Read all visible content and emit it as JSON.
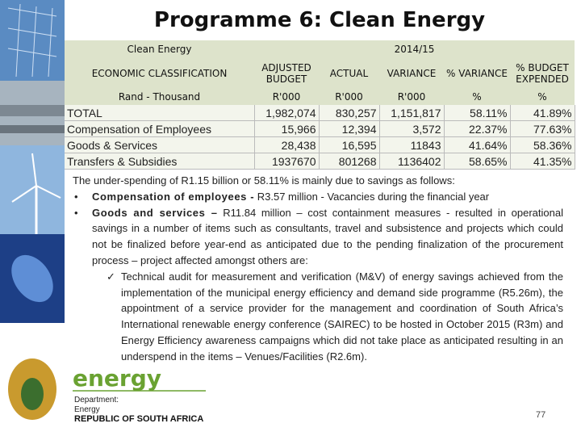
{
  "title": "Programme 6: Clean Energy",
  "table": {
    "header_row1": [
      "Clean Energy",
      "2014/15"
    ],
    "header_row2": [
      "ECONOMIC CLASSIFICATION",
      "ADJUSTED BUDGET",
      "ACTUAL",
      "VARIANCE",
      "% VARIANCE",
      "% BUDGET EXPENDED"
    ],
    "header_row3": [
      "Rand - Thousand",
      "R'000",
      "R'000",
      "R'000",
      "%",
      "%"
    ],
    "rows": [
      [
        "TOTAL",
        "1,982,074",
        "830,257",
        "1,151,817",
        "58.11%",
        "41.89%"
      ],
      [
        "Compensation of Employees",
        "15,966",
        "12,394",
        "3,572",
        "22.37%",
        "77.63%"
      ],
      [
        "Goods & Services",
        "28,438",
        "16,595",
        "11843",
        "41.64%",
        "58.36%"
      ],
      [
        "Transfers & Subsidies",
        "1937670",
        "801268",
        "1136402",
        "58.65%",
        "41.35%"
      ]
    ]
  },
  "body": {
    "intro": "The under-spending of R1.15 billion or 58.11% is mainly due to savings as follows:",
    "bullets": [
      {
        "label": "Compensation of employees -",
        "text": "R3.57 million - Vacancies during the financial year"
      },
      {
        "label": "Goods and services –",
        "text": "R11.84 million – cost containment measures - resulted in operational savings in a number of items such as consultants, travel and subsistence and projects which could not be finalized before year-end as anticipated due to the pending finalization of the procurement process – project affected amongst others are:"
      }
    ],
    "sub_bullet": "Technical audit for measurement and verification (M&V) of energy savings achieved from the implementation of the municipal energy efficiency and demand side programme (R5.26m), the appointment of a service provider for the management and coordination of South Africa’s International renewable energy conference (SAIREC) to be hosted in October 2015 (R3m) and Energy Efficiency awareness campaigns which did not take place as anticipated resulting in an underspend in the items – Venues/Facilities (R2.6m)."
  },
  "logo": {
    "brand": "energy",
    "line1": "Department:",
    "line2": "Energy",
    "line3": "REPUBLIC OF SOUTH AFRICA"
  },
  "page_number": "77"
}
